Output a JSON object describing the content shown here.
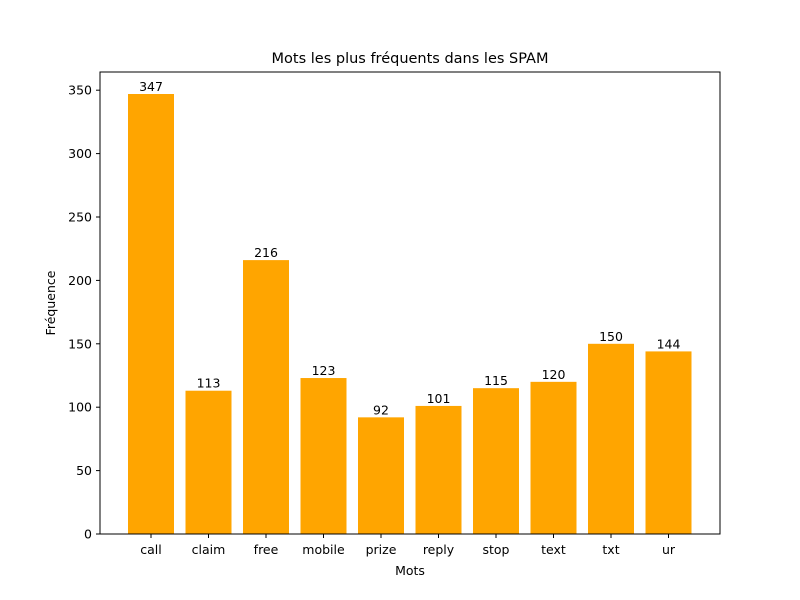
{
  "chart_data": {
    "type": "bar",
    "title": "Mots les plus fréquents dans les SPAM",
    "xlabel": "Mots",
    "ylabel": "Fréquence",
    "categories": [
      "call",
      "claim",
      "free",
      "mobile",
      "prize",
      "reply",
      "stop",
      "text",
      "txt",
      "ur"
    ],
    "values": [
      347,
      113,
      216,
      123,
      92,
      101,
      115,
      120,
      150,
      144
    ],
    "ylim": [
      0,
      364.35
    ],
    "yticks": [
      0,
      50,
      100,
      150,
      200,
      250,
      300,
      350
    ],
    "bar_color": "#ffa500",
    "grid": false,
    "legend": "none",
    "data_labels": true
  }
}
